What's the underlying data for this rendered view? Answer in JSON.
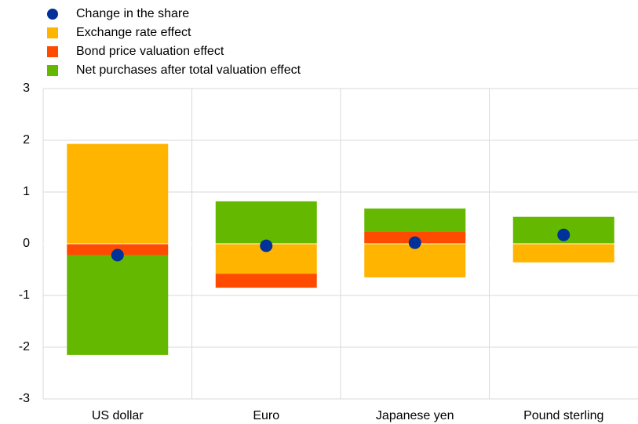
{
  "chart_data": {
    "type": "stacked_bar_dot",
    "categories": [
      "US dollar",
      "Euro",
      "Japanese yen",
      "Pound sterling"
    ],
    "series": [
      {
        "name": "Change in the share",
        "kind": "dot",
        "color": "#003299",
        "values": [
          -0.22,
          -0.04,
          0.02,
          0.17
        ]
      },
      {
        "name": "Exchange rate effect",
        "kind": "bar",
        "color": "#ffb400",
        "values": [
          1.93,
          -0.58,
          -0.65,
          -0.36
        ]
      },
      {
        "name": "Bond price valuation effect",
        "kind": "bar",
        "color": "#ff4b00",
        "values": [
          -0.22,
          -0.27,
          0.24,
          0
        ]
      },
      {
        "name": "Net purchases after total valuation effect",
        "kind": "bar",
        "color": "#65b800",
        "values": [
          -1.93,
          0.82,
          0.44,
          0.52
        ]
      }
    ],
    "ylim": [
      -3,
      3
    ],
    "yticks": [
      -3,
      -2,
      -1,
      0,
      1,
      2,
      3
    ],
    "grid": true
  }
}
